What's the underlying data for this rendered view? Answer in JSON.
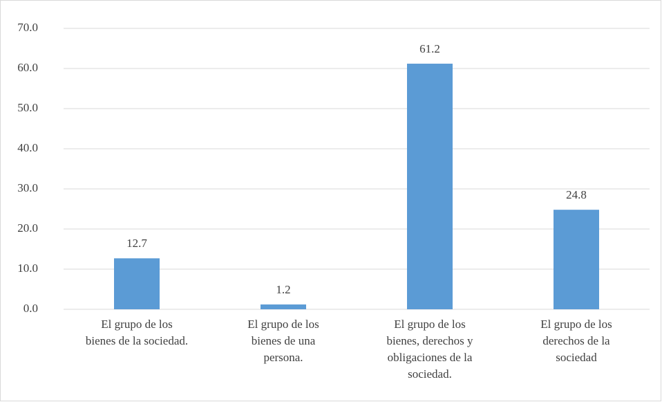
{
  "chart_data": {
    "type": "bar",
    "categories": [
      "El grupo de los\nbienes de la sociedad.",
      "El grupo de los\nbienes de una\npersona.",
      "El grupo de los\nbienes, derechos y\nobligaciones de la\nsociedad.",
      "El grupo de los\nderechos de la\nsociedad"
    ],
    "values": [
      12.7,
      1.2,
      61.2,
      24.8
    ],
    "color": "#5b9bd5",
    "ylim": [
      0,
      70
    ],
    "yticks": [
      {
        "value": 0,
        "label": "0.0"
      },
      {
        "value": 10,
        "label": "10.0"
      },
      {
        "value": 20,
        "label": "20.0"
      },
      {
        "value": 30,
        "label": "30.0"
      },
      {
        "value": 40,
        "label": "40.0"
      },
      {
        "value": 50,
        "label": "50.0"
      },
      {
        "value": 60,
        "label": "60.0"
      },
      {
        "value": 70,
        "label": "70.0"
      }
    ],
    "grid": true
  }
}
